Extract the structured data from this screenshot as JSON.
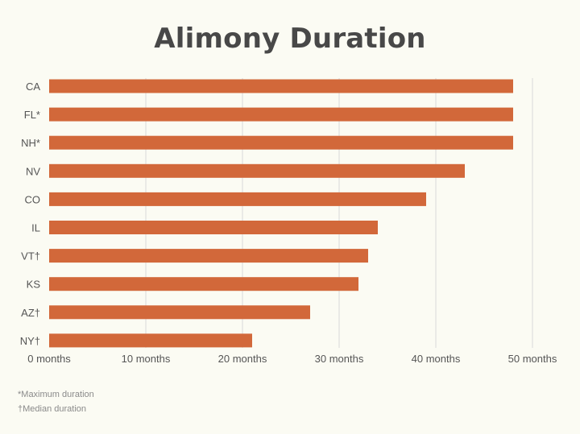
{
  "title": "Alimony Duration",
  "chart_data": {
    "type": "bar",
    "orientation": "horizontal",
    "title": "Alimony Duration",
    "categories": [
      "CA",
      "FL*",
      "NH*",
      "NV",
      "CO",
      "IL",
      "VT†",
      "KS",
      "AZ†",
      "NY†"
    ],
    "values": [
      48,
      48,
      48,
      43,
      39,
      34,
      33,
      32,
      27,
      21
    ],
    "xlim": [
      0,
      50
    ],
    "xticks": [
      0,
      10,
      20,
      30,
      40,
      50
    ],
    "xtick_labels": [
      "0 months",
      "10 months",
      "20 months",
      "30 months",
      "40 months",
      "50 months"
    ],
    "xlabel": "",
    "ylabel": "",
    "grid": "vertical",
    "legend": "none",
    "bar_color": "#d2683a",
    "grid_color": "#d9d9d9"
  },
  "footnotes": [
    "*Maximum duration",
    "†Median duration"
  ]
}
